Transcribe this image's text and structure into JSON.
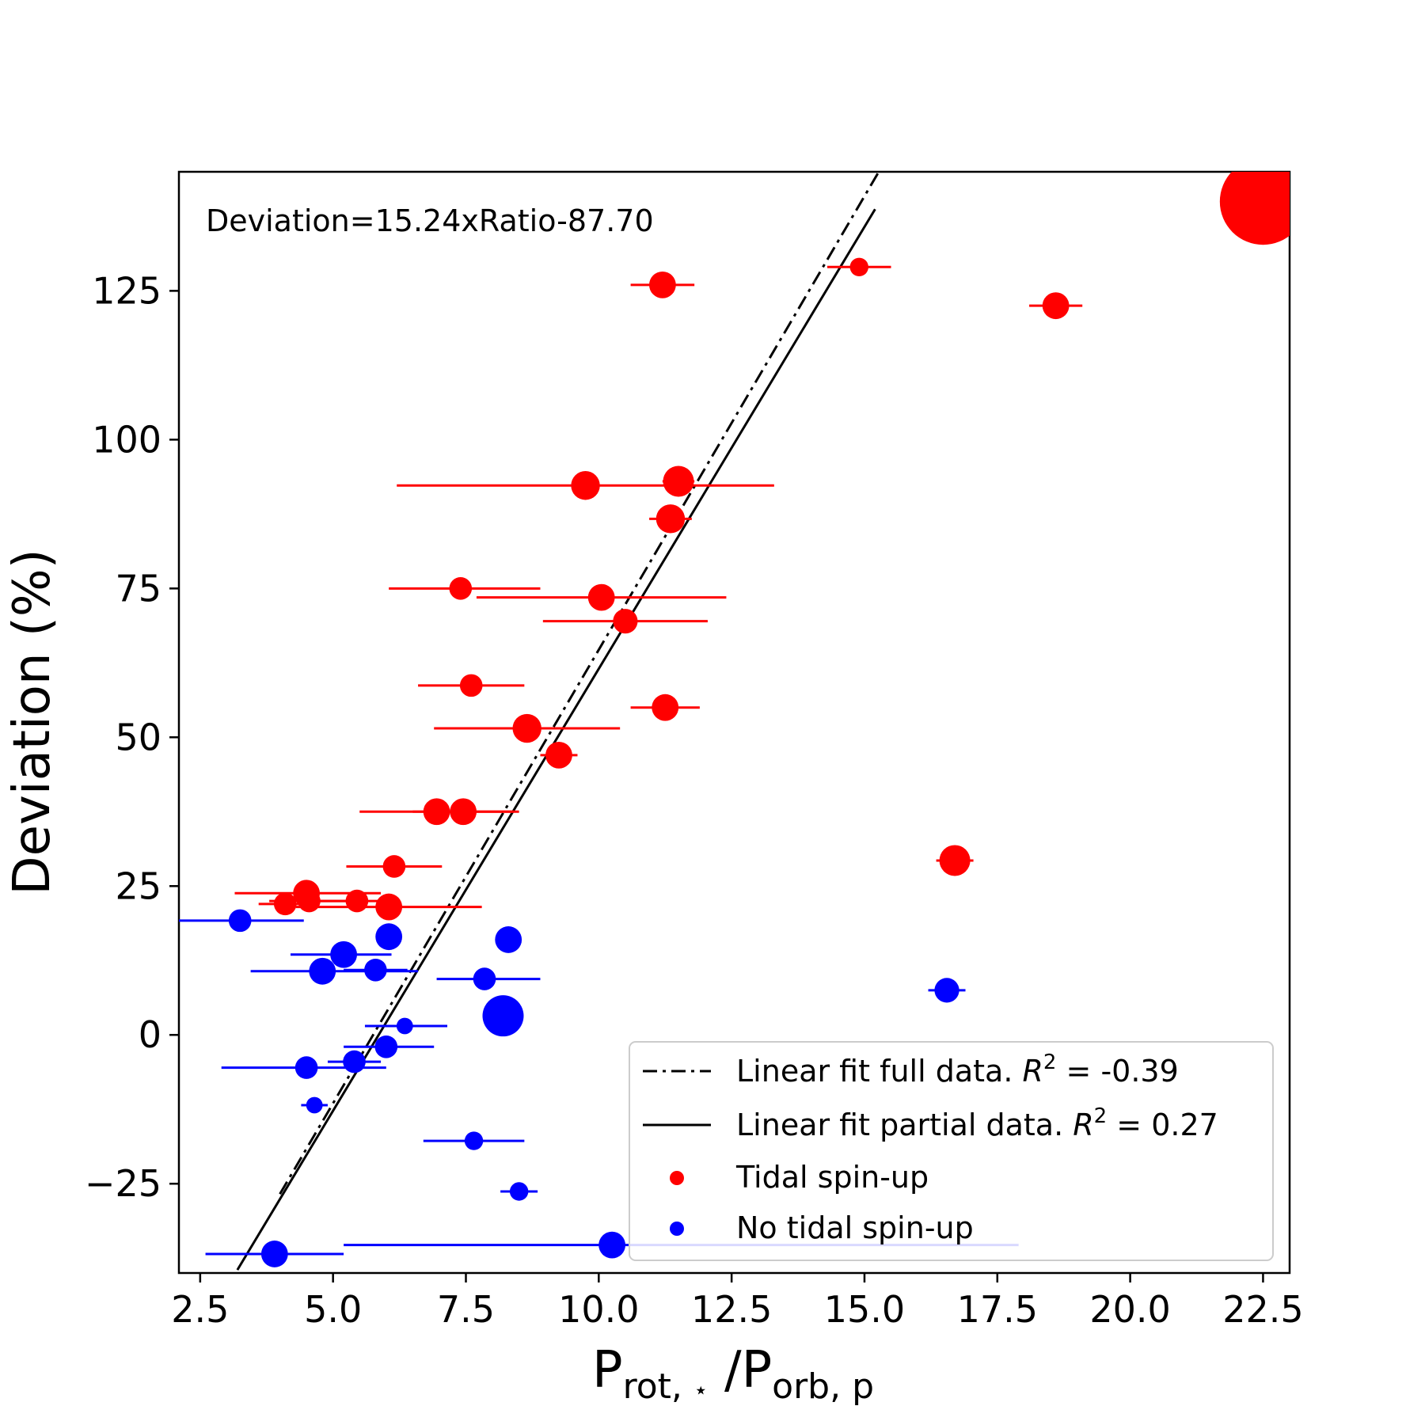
{
  "chart_data": {
    "type": "scatter",
    "title": "",
    "annotation": "Deviation=15.24xRatio-87.70",
    "xlabel": {
      "base1": "P",
      "sub1": "rot, ",
      "star": "⋆",
      "slash": " /",
      "base2": "P",
      "sub2": "orb, p"
    },
    "ylabel": "Deviation (%)",
    "xlim": [
      2.1,
      23.0
    ],
    "ylim": [
      -40,
      145
    ],
    "xticks": [
      2.5,
      5.0,
      7.5,
      10.0,
      12.5,
      15.0,
      17.5,
      20.0,
      22.5
    ],
    "xtick_labels": [
      "2.5",
      "5.0",
      "7.5",
      "10.0",
      "12.5",
      "15.0",
      "17.5",
      "20.0",
      "22.5"
    ],
    "yticks": [
      -25,
      0,
      25,
      50,
      75,
      100,
      125
    ],
    "ytick_labels": [
      "−25",
      "0",
      "25",
      "50",
      "75",
      "100",
      "125"
    ],
    "colors": {
      "tidal": "#ff0000",
      "no_tidal": "#0000ff",
      "line": "#000000"
    },
    "fit_full": {
      "label_text": "Linear fit full data. ",
      "r2_label": "R",
      "r2_sup": "2",
      "r2_value": " = -0.39",
      "slope": 15.24,
      "intercept": -87.7,
      "style": "dashdot",
      "x_range": [
        4.0,
        15.3
      ]
    },
    "fit_partial": {
      "label_text": "Linear fit partial data. ",
      "r2_label": "R",
      "r2_sup": "2",
      "r2_value": " = 0.27",
      "slope": 14.85,
      "intercept": -87.0,
      "style": "solid",
      "x_range": [
        3.2,
        15.2
      ]
    },
    "legend": {
      "location": "lower right",
      "entries": [
        "Linear fit full data.",
        "Linear fit partial data.",
        "Tidal spin-up",
        "No tidal spin-up"
      ],
      "tidal_label": "Tidal spin-up",
      "no_tidal_label": "No tidal spin-up"
    },
    "series": [
      {
        "name": "Tidal spin-up",
        "color": "#ff0000",
        "points": [
          {
            "x": 11.2,
            "y": 126,
            "xerr_lo": 10.6,
            "xerr_hi": 11.8,
            "size": 13
          },
          {
            "x": 14.9,
            "y": 129,
            "xerr_lo": 14.3,
            "xerr_hi": 15.5,
            "size": 9
          },
          {
            "x": 18.6,
            "y": 122.5,
            "xerr_lo": 18.1,
            "xerr_hi": 19.1,
            "size": 13
          },
          {
            "x": 22.5,
            "y": 140,
            "xerr_lo": 22.5,
            "xerr_hi": 22.5,
            "size": 42
          },
          {
            "x": 9.75,
            "y": 92.3,
            "xerr_lo": 6.2,
            "xerr_hi": 13.3,
            "size": 14
          },
          {
            "x": 11.5,
            "y": 93,
            "xerr_lo": 11.2,
            "xerr_hi": 11.8,
            "size": 15
          },
          {
            "x": 11.35,
            "y": 86.7,
            "xerr_lo": 10.95,
            "xerr_hi": 11.75,
            "size": 14
          },
          {
            "x": 7.4,
            "y": 75,
            "xerr_lo": 6.05,
            "xerr_hi": 8.9,
            "size": 11
          },
          {
            "x": 10.05,
            "y": 73.5,
            "xerr_lo": 7.7,
            "xerr_hi": 12.4,
            "size": 13
          },
          {
            "x": 10.5,
            "y": 69.5,
            "xerr_lo": 8.95,
            "xerr_hi": 12.05,
            "size": 12
          },
          {
            "x": 7.6,
            "y": 58.7,
            "xerr_lo": 6.6,
            "xerr_hi": 8.6,
            "size": 11
          },
          {
            "x": 11.25,
            "y": 55,
            "xerr_lo": 10.6,
            "xerr_hi": 11.9,
            "size": 13
          },
          {
            "x": 8.65,
            "y": 51.5,
            "xerr_lo": 6.9,
            "xerr_hi": 10.4,
            "size": 14
          },
          {
            "x": 9.25,
            "y": 47,
            "xerr_lo": 8.9,
            "xerr_hi": 9.6,
            "size": 13
          },
          {
            "x": 6.95,
            "y": 37.5,
            "xerr_lo": 5.5,
            "xerr_hi": 8.4,
            "size": 13
          },
          {
            "x": 7.45,
            "y": 37.5,
            "xerr_lo": 6.5,
            "xerr_hi": 8.5,
            "size": 13
          },
          {
            "x": 6.15,
            "y": 28.3,
            "xerr_lo": 5.25,
            "xerr_hi": 7.05,
            "size": 11
          },
          {
            "x": 16.7,
            "y": 29.3,
            "xerr_lo": 16.35,
            "xerr_hi": 17.05,
            "size": 15
          },
          {
            "x": 4.5,
            "y": 23.8,
            "xerr_lo": 3.15,
            "xerr_hi": 5.9,
            "size": 13
          },
          {
            "x": 4.55,
            "y": 22.5,
            "xerr_lo": 3.8,
            "xerr_hi": 5.3,
            "size": 11
          },
          {
            "x": 5.45,
            "y": 22.5,
            "xerr_lo": 4.75,
            "xerr_hi": 6.15,
            "size": 11
          },
          {
            "x": 4.1,
            "y": 22.0,
            "xerr_lo": 3.6,
            "xerr_hi": 4.6,
            "size": 11
          },
          {
            "x": 6.05,
            "y": 21.5,
            "xerr_lo": 4.3,
            "xerr_hi": 7.8,
            "size": 13
          }
        ]
      },
      {
        "name": "No tidal spin-up",
        "color": "#0000ff",
        "points": [
          {
            "x": 3.25,
            "y": 19.2,
            "xerr_lo": 2.0,
            "xerr_hi": 4.45,
            "size": 11
          },
          {
            "x": 6.05,
            "y": 16.5,
            "xerr_lo": 6.05,
            "xerr_hi": 6.05,
            "size": 13
          },
          {
            "x": 8.3,
            "y": 16.0,
            "xerr_lo": 8.3,
            "xerr_hi": 8.3,
            "size": 13
          },
          {
            "x": 5.2,
            "y": 13.5,
            "xerr_lo": 4.2,
            "xerr_hi": 6.1,
            "size": 13
          },
          {
            "x": 4.8,
            "y": 10.7,
            "xerr_lo": 3.45,
            "xerr_hi": 6.6,
            "size": 13
          },
          {
            "x": 5.8,
            "y": 10.9,
            "xerr_lo": 5.2,
            "xerr_hi": 6.4,
            "size": 11
          },
          {
            "x": 7.85,
            "y": 9.4,
            "xerr_lo": 6.95,
            "xerr_hi": 8.9,
            "size": 11
          },
          {
            "x": 16.55,
            "y": 7.5,
            "xerr_lo": 16.2,
            "xerr_hi": 16.9,
            "size": 12
          },
          {
            "x": 8.2,
            "y": 3.2,
            "xerr_lo": 8.2,
            "xerr_hi": 8.2,
            "size": 20
          },
          {
            "x": 6.35,
            "y": 1.5,
            "xerr_lo": 5.6,
            "xerr_hi": 7.15,
            "size": 8
          },
          {
            "x": 6.0,
            "y": -2.0,
            "xerr_lo": 5.2,
            "xerr_hi": 6.9,
            "size": 11
          },
          {
            "x": 5.4,
            "y": -4.5,
            "xerr_lo": 4.9,
            "xerr_hi": 5.9,
            "size": 11
          },
          {
            "x": 4.5,
            "y": -5.5,
            "xerr_lo": 2.9,
            "xerr_hi": 6.0,
            "size": 11
          },
          {
            "x": 4.65,
            "y": -11.8,
            "xerr_lo": 4.4,
            "xerr_hi": 4.9,
            "size": 8
          },
          {
            "x": 7.65,
            "y": -17.8,
            "xerr_lo": 6.7,
            "xerr_hi": 8.6,
            "size": 9
          },
          {
            "x": 8.5,
            "y": -26.3,
            "xerr_lo": 8.15,
            "xerr_hi": 8.85,
            "size": 9
          },
          {
            "x": 3.9,
            "y": -36.8,
            "xerr_lo": 2.6,
            "xerr_hi": 5.2,
            "size": 13
          },
          {
            "x": 10.25,
            "y": -35.3,
            "xerr_lo": 5.2,
            "xerr_hi": 17.9,
            "size": 13
          }
        ]
      }
    ]
  }
}
